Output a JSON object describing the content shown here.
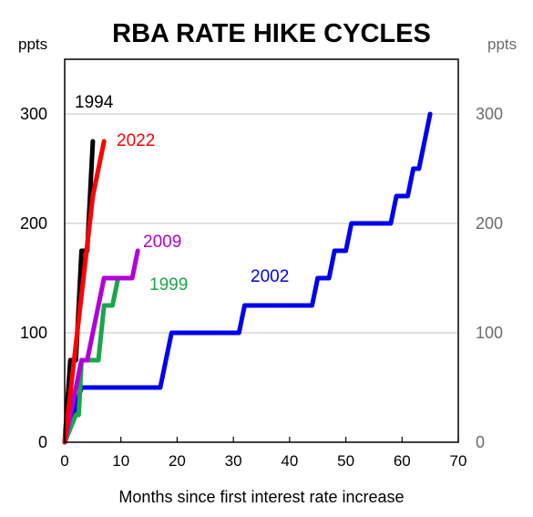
{
  "chart_data": {
    "type": "line",
    "title": "RBA RATE HIKE CYCLES",
    "xlabel": "Months since first interest rate increase",
    "ylabel_left": "ppts",
    "ylabel_right": "ppts",
    "xlim": [
      0,
      70
    ],
    "ylim": [
      0,
      350
    ],
    "x_ticks": [
      "0",
      "10",
      "20",
      "30",
      "40",
      "50",
      "60",
      "70"
    ],
    "y_ticks": [
      "0",
      "100",
      "200",
      "300"
    ],
    "y_ticks_right": [
      "0",
      "100",
      "200",
      "300"
    ],
    "grid": "horizontal",
    "series": [
      {
        "name": "1994",
        "color": "#000000",
        "points": [
          [
            0,
            0
          ],
          [
            1,
            75
          ],
          [
            2,
            75
          ],
          [
            3,
            175
          ],
          [
            4,
            175
          ],
          [
            5,
            275
          ]
        ]
      },
      {
        "name": "1999",
        "color": "#1aa64a",
        "points": [
          [
            0,
            0
          ],
          [
            2,
            25
          ],
          [
            2.5,
            25
          ],
          [
            3,
            75
          ],
          [
            6,
            75
          ],
          [
            7,
            125
          ],
          [
            8.5,
            125
          ],
          [
            9.5,
            150
          ]
        ]
      },
      {
        "name": "2002",
        "color": "#0000ee",
        "points": [
          [
            0,
            0
          ],
          [
            3,
            50
          ],
          [
            17,
            50
          ],
          [
            19,
            100
          ],
          [
            31,
            100
          ],
          [
            32,
            125
          ],
          [
            44,
            125
          ],
          [
            45,
            150
          ],
          [
            47,
            150
          ],
          [
            48,
            175
          ],
          [
            50,
            175
          ],
          [
            51,
            200
          ],
          [
            58,
            200
          ],
          [
            59,
            225
          ],
          [
            61,
            225
          ],
          [
            62,
            250
          ],
          [
            63,
            250
          ],
          [
            65,
            300
          ]
        ]
      },
      {
        "name": "2009",
        "color": "#b000d8",
        "points": [
          [
            0,
            0
          ],
          [
            3,
            75
          ],
          [
            4,
            75
          ],
          [
            7,
            150
          ],
          [
            12,
            150
          ],
          [
            13,
            175
          ]
        ]
      },
      {
        "name": "2022",
        "color": "#ff0000",
        "points": [
          [
            0,
            0
          ],
          [
            5,
            225
          ],
          [
            7,
            275
          ]
        ]
      }
    ]
  }
}
